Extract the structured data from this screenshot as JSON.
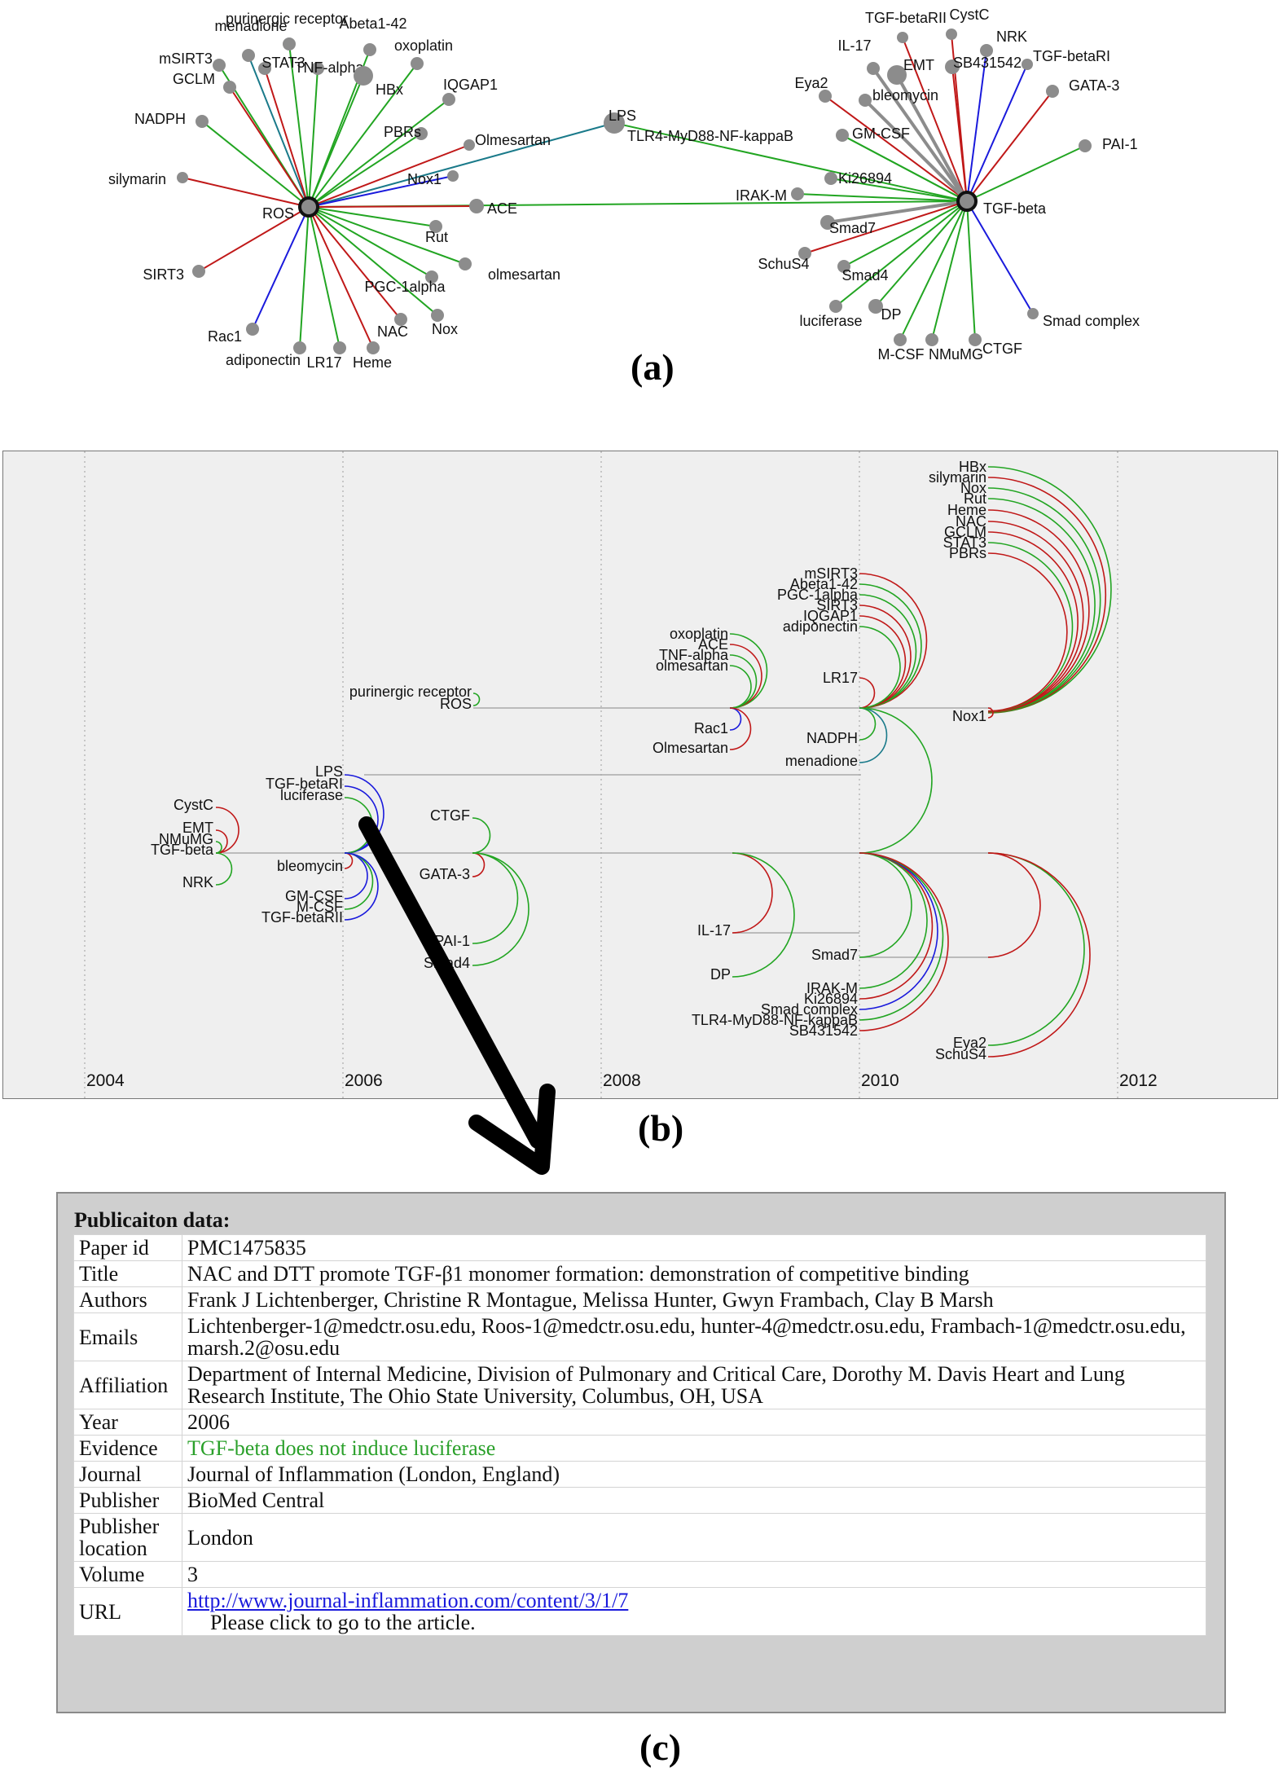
{
  "panel_labels": {
    "a": "(a)",
    "b": "(b)",
    "c": "(c)"
  },
  "colors": {
    "green": "#22a522",
    "red": "#c01818",
    "blue": "#1a1adc",
    "teal": "#1a7a8a",
    "gray": "#8c8c8c"
  },
  "network": {
    "hubs": [
      {
        "id": "ros",
        "label": "ROS"
      },
      {
        "id": "tgfbeta",
        "label": "TGF-beta"
      },
      {
        "id": "lps",
        "label": "LPS"
      }
    ],
    "ros_neighbors": [
      "purinergic receptor",
      "menadione",
      "Abeta1-42",
      "oxoplatin",
      "mSIRT3",
      "STAT3",
      "TNF-alpha",
      "GCLM",
      "HBx",
      "IQGAP1",
      "NADPH",
      "PBRs",
      "Olmesartan",
      "silymarin",
      "Nox1",
      "ACE",
      "Rut",
      "SIRT3",
      "olmesartan",
      "PGC-1alpha",
      "Rac1",
      "NAC",
      "Nox",
      "adiponectin",
      "LR17",
      "Heme"
    ],
    "tgf_neighbors": [
      "TGF-betaRII",
      "CystC",
      "IL-17",
      "NRK",
      "EMT",
      "SB431542",
      "TGF-betaRI",
      "Eya2",
      "bleomycin",
      "GATA-3",
      "TLR4-MyD88-NF-kappaB",
      "GM-CSF",
      "PAI-1",
      "Ki26894",
      "IRAK-M",
      "Smad7",
      "SchuS4",
      "Smad4",
      "luciferase",
      "DP",
      "Smad complex",
      "M-CSF",
      "NMuMG",
      "CTGF"
    ]
  },
  "timeline": {
    "years": [
      "2004",
      "2006",
      "2008",
      "2010",
      "2012"
    ],
    "labels": [
      "HBx",
      "silymarin",
      "Nox",
      "Rut",
      "Heme",
      "NAC",
      "GCLM",
      "STAT3",
      "PBRs",
      "mSIRT3",
      "Abeta1-42",
      "PGC-1alpha",
      "SIRT3",
      "IQGAP1",
      "adiponectin",
      "oxoplatin",
      "ACE",
      "TNF-alpha",
      "olmesartan",
      "LR17",
      "purinergic receptor",
      "ROS",
      "Nox1",
      "Rac1",
      "Olmesartan",
      "NADPH",
      "menadione",
      "LPS",
      "TGF-betaRI",
      "luciferase",
      "CystC",
      "EMT",
      "NMuMG",
      "TGF-beta",
      "NRK",
      "CTGF",
      "bleomycin",
      "GATA-3",
      "GM-CSF",
      "M-CSF",
      "TGF-betaRII",
      "PAI-1",
      "Smad4",
      "IL-17",
      "Smad7",
      "DP",
      "IRAK-M",
      "Ki26894",
      "Smad complex",
      "TLR4-MyD88-NF-kappaB",
      "SB431542",
      "Eya2",
      "SchuS4"
    ]
  },
  "publication": {
    "heading": "Publicaiton data:",
    "paper_id_label": "Paper id",
    "paper_id": "PMC1475835",
    "title_label": "Title",
    "title": "NAC and DTT promote TGF-β1 monomer formation: demonstration of competitive binding",
    "authors_label": "Authors",
    "authors": "Frank J Lichtenberger, Christine R Montague, Melissa Hunter, Gwyn Frambach, Clay B Marsh",
    "emails_label": "Emails",
    "emails": "Lichtenberger-1@medctr.osu.edu, Roos-1@medctr.osu.edu, hunter-4@medctr.osu.edu, Frambach-1@medctr.osu.edu, marsh.2@osu.edu",
    "affiliation_label": "Affiliation",
    "affiliation": "Department of Internal Medicine, Division of Pulmonary and Critical Care, Dorothy M. Davis Heart and Lung Research Institute, The Ohio State University, Columbus, OH, USA",
    "year_label": "Year",
    "year": "2006",
    "evidence_label": "Evidence",
    "evidence": "TGF-beta does not induce luciferase",
    "journal_label": "Journal",
    "journal": "Journal of Inflammation (London, England)",
    "publisher_label": "Publisher",
    "publisher": "BioMed Central",
    "publisher_location_label": "Publisher location",
    "publisher_location": "London",
    "volume_label": "Volume",
    "volume": "3",
    "url_label": "URL",
    "url": "http://www.journal-inflammation.com/content/3/1/7",
    "url_note": "Please click to go to the article."
  }
}
